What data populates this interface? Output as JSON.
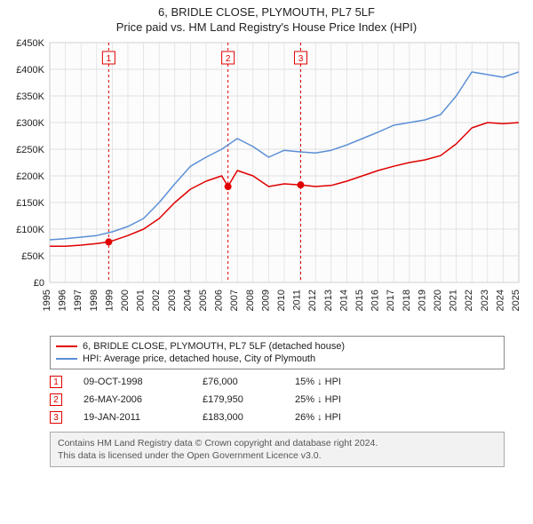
{
  "title": "6, BRIDLE CLOSE, PLYMOUTH, PL7 5LF",
  "subtitle": "Price paid vs. HM Land Registry's House Price Index (HPI)",
  "chart": {
    "type": "line",
    "background_color": "#ffffff",
    "plot_background_color": "#fcfcfc",
    "grid_color": "#d8d8d8",
    "axis_color": "#888888",
    "tick_font_size": 11,
    "y": {
      "min": 0,
      "max": 450000,
      "step": 50000,
      "labels": [
        "£0",
        "£50K",
        "£100K",
        "£150K",
        "£200K",
        "£250K",
        "£300K",
        "£350K",
        "£400K",
        "£450K"
      ]
    },
    "x": {
      "min": 1995,
      "max": 2025,
      "step": 1,
      "labels": [
        "1995",
        "1996",
        "1997",
        "1998",
        "1999",
        "2000",
        "2001",
        "2002",
        "2003",
        "2004",
        "2005",
        "2006",
        "2007",
        "2008",
        "2009",
        "2010",
        "2011",
        "2012",
        "2013",
        "2014",
        "2015",
        "2016",
        "2017",
        "2018",
        "2019",
        "2020",
        "2021",
        "2022",
        "2023",
        "2024",
        "2025"
      ]
    },
    "series": [
      {
        "name": "property",
        "label": "6, BRIDLE CLOSE, PLYMOUTH, PL7 5LF (detached house)",
        "color": "#e00000",
        "line_width": 1.5,
        "points": [
          [
            1995,
            68000
          ],
          [
            1996,
            68000
          ],
          [
            1997,
            70000
          ],
          [
            1998,
            73000
          ],
          [
            1998.77,
            76000
          ],
          [
            1999,
            78000
          ],
          [
            2000,
            88000
          ],
          [
            2001,
            100000
          ],
          [
            2002,
            120000
          ],
          [
            2003,
            150000
          ],
          [
            2004,
            175000
          ],
          [
            2005,
            190000
          ],
          [
            2006,
            200000
          ],
          [
            2006.4,
            179950
          ],
          [
            2007,
            210000
          ],
          [
            2008,
            200000
          ],
          [
            2009,
            180000
          ],
          [
            2010,
            185000
          ],
          [
            2011.05,
            183000
          ],
          [
            2012,
            180000
          ],
          [
            2013,
            182000
          ],
          [
            2014,
            190000
          ],
          [
            2015,
            200000
          ],
          [
            2016,
            210000
          ],
          [
            2017,
            218000
          ],
          [
            2018,
            225000
          ],
          [
            2019,
            230000
          ],
          [
            2020,
            238000
          ],
          [
            2021,
            260000
          ],
          [
            2022,
            290000
          ],
          [
            2023,
            300000
          ],
          [
            2024,
            298000
          ],
          [
            2025,
            300000
          ]
        ]
      },
      {
        "name": "hpi",
        "label": "HPI: Average price, detached house, City of Plymouth",
        "color": "#5b8fd6",
        "line_width": 1.5,
        "points": [
          [
            1995,
            80000
          ],
          [
            1996,
            82000
          ],
          [
            1997,
            85000
          ],
          [
            1998,
            88000
          ],
          [
            1999,
            95000
          ],
          [
            2000,
            105000
          ],
          [
            2001,
            120000
          ],
          [
            2002,
            150000
          ],
          [
            2003,
            185000
          ],
          [
            2004,
            218000
          ],
          [
            2005,
            235000
          ],
          [
            2006,
            250000
          ],
          [
            2007,
            270000
          ],
          [
            2008,
            255000
          ],
          [
            2009,
            235000
          ],
          [
            2010,
            248000
          ],
          [
            2011,
            245000
          ],
          [
            2012,
            243000
          ],
          [
            2013,
            248000
          ],
          [
            2014,
            258000
          ],
          [
            2015,
            270000
          ],
          [
            2016,
            282000
          ],
          [
            2017,
            295000
          ],
          [
            2018,
            300000
          ],
          [
            2019,
            305000
          ],
          [
            2020,
            315000
          ],
          [
            2021,
            350000
          ],
          [
            2022,
            395000
          ],
          [
            2023,
            390000
          ],
          [
            2024,
            385000
          ],
          [
            2025,
            395000
          ]
        ]
      }
    ],
    "markers": [
      {
        "n": "1",
        "x": 1998.77,
        "y": 76000,
        "color": "#e00000",
        "line_dash": "3,3",
        "label_y_top": true
      },
      {
        "n": "2",
        "x": 2006.4,
        "y": 179950,
        "color": "#e00000",
        "line_dash": "3,3",
        "label_y_top": true
      },
      {
        "n": "3",
        "x": 2011.05,
        "y": 183000,
        "color": "#e00000",
        "line_dash": "3,3",
        "label_y_top": true
      }
    ]
  },
  "legend": {
    "items": [
      {
        "color": "#e00000",
        "text": "6, BRIDLE CLOSE, PLYMOUTH, PL7 5LF (detached house)"
      },
      {
        "color": "#5b8fd6",
        "text": "HPI: Average price, detached house, City of Plymouth"
      }
    ]
  },
  "marker_table": [
    {
      "n": "1",
      "date": "09-OCT-1998",
      "price": "£76,000",
      "diff": "15% ↓ HPI"
    },
    {
      "n": "2",
      "date": "26-MAY-2006",
      "price": "£179,950",
      "diff": "25% ↓ HPI"
    },
    {
      "n": "3",
      "date": "19-JAN-2011",
      "price": "£183,000",
      "diff": "26% ↓ HPI"
    }
  ],
  "footer": {
    "line1": "Contains HM Land Registry data © Crown copyright and database right 2024.",
    "line2": "This data is licensed under the Open Government Licence v3.0."
  }
}
